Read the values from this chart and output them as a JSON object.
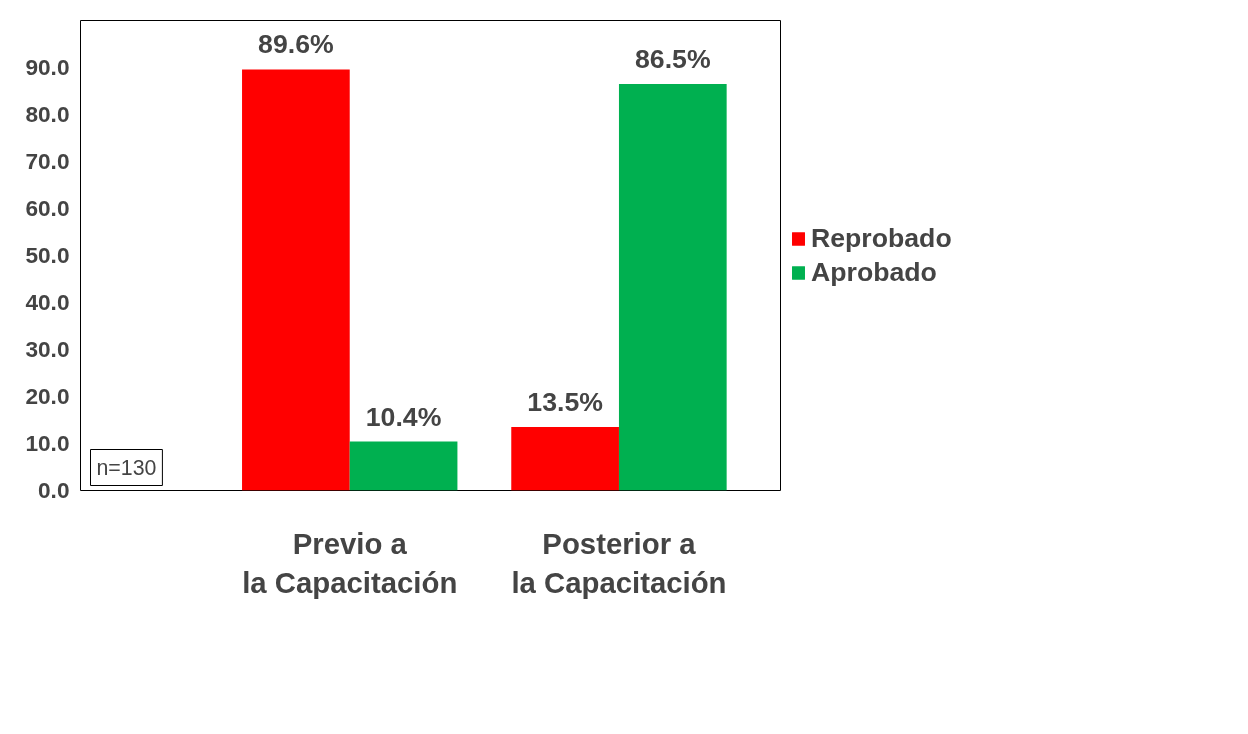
{
  "chart_data": {
    "type": "bar",
    "categories": [
      "Previo a la Capacitación",
      "Posterior a la Capacitación"
    ],
    "series": [
      {
        "name": "Reprobado",
        "color": "#ff0000",
        "values": [
          89.6,
          13.5
        ],
        "value_labels": [
          "89.6%",
          "13.5%"
        ]
      },
      {
        "name": "Aprobado",
        "color": "#00b050",
        "values": [
          10.4,
          86.5
        ],
        "value_labels": [
          "10.4%",
          "86.5%"
        ]
      }
    ],
    "ylim": [
      0,
      100
    ],
    "yticks": [
      {
        "value": 0,
        "label": "0.0"
      },
      {
        "value": 10,
        "label": "10.0"
      },
      {
        "value": 20,
        "label": "20.0"
      },
      {
        "value": 30,
        "label": "30.0"
      },
      {
        "value": 40,
        "label": "40.0"
      },
      {
        "value": 50,
        "label": "50.0"
      },
      {
        "value": 60,
        "label": "60.0"
      },
      {
        "value": 70,
        "label": "70.0"
      },
      {
        "value": 80,
        "label": "80.0"
      },
      {
        "value": 90,
        "label": "90.0"
      }
    ],
    "grid": false,
    "legend": "right",
    "annotations": [
      "n=130"
    ]
  }
}
